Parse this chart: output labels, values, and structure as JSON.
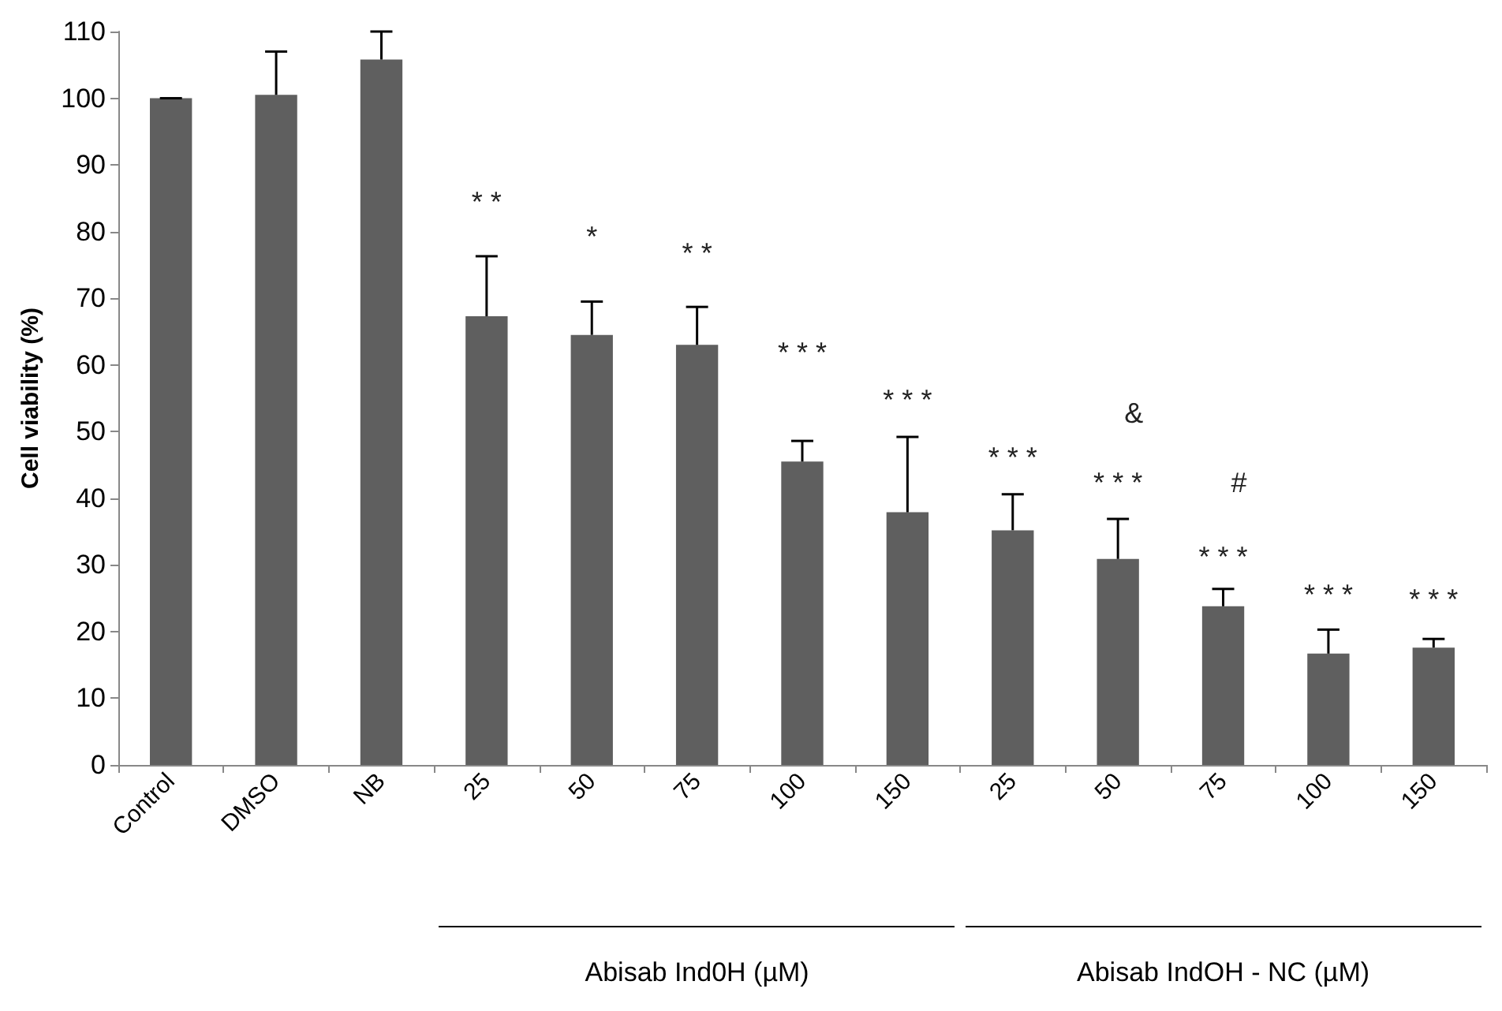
{
  "chart_data": {
    "type": "bar",
    "ylabel": "Cell viability (%)",
    "categories": [
      "Control",
      "DMSO",
      "NB",
      "25",
      "50",
      "75",
      "100",
      "150",
      "25",
      "50",
      "75",
      "100",
      "150"
    ],
    "values": [
      100,
      100.5,
      105.8,
      67.3,
      64.5,
      63,
      45.5,
      37.9,
      35.2,
      30.9,
      23.8,
      16.7,
      17.6
    ],
    "errors": [
      [
        100,
        100
      ],
      [
        100.5,
        107
      ],
      [
        105.8,
        110
      ],
      [
        67.3,
        76.3
      ],
      [
        64.5,
        69.5
      ],
      [
        63,
        68.7
      ],
      [
        45.5,
        48.6
      ],
      [
        37.9,
        49.2
      ],
      [
        35.2,
        40.6
      ],
      [
        30.9,
        36.9
      ],
      [
        23.8,
        26.4
      ],
      [
        16.7,
        20.3
      ],
      [
        17.6,
        18.9
      ]
    ],
    "color": "#5f5f5f",
    "ylim": [
      0,
      110
    ],
    "yticks": [
      0,
      10,
      20,
      30,
      40,
      50,
      60,
      70,
      80,
      90,
      100,
      110
    ],
    "grid": false,
    "annotations": [
      "* *",
      "*",
      "* *",
      "* * *",
      "* * *",
      "* * *",
      "&",
      "* * *",
      "#",
      "* * *",
      "* * *",
      "* * *",
      "Abisab  Ind0H (µM)",
      "Abisab IndOH - NC (µM)"
    ]
  }
}
